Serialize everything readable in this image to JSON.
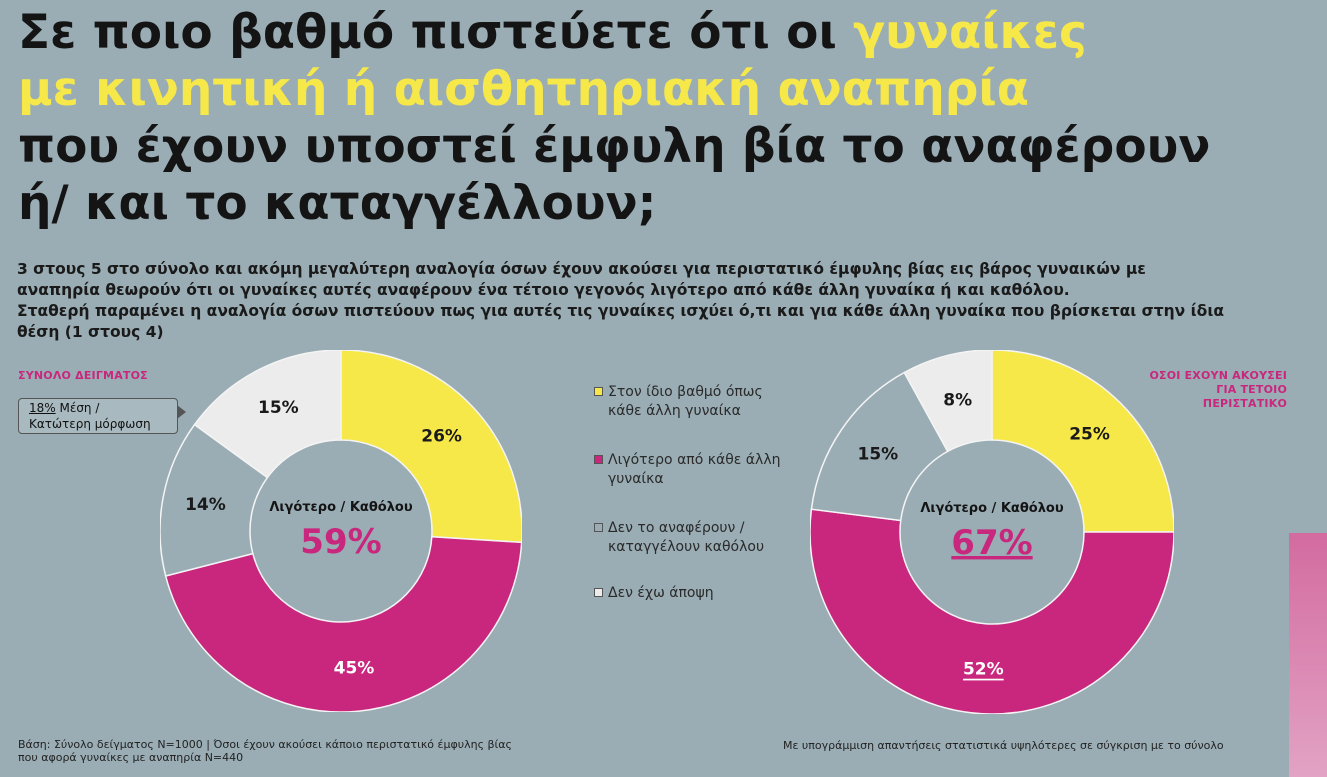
{
  "title": {
    "line1_pre": "Σε ποιο βαθμό πιστεύετε ότι οι ",
    "line1_highlight": "γυναίκες",
    "line2_highlight": "με κινητική ή αισθητηριακή αναπηρία",
    "line3": "που έχουν υποστεί έμφυλη βία το αναφέρουν",
    "line4": "ή/ και το καταγγέλλουν;"
  },
  "intro": [
    "3 στους 5 στο σύνολο και ακόμη μεγαλύτερη αναλογία όσων έχουν ακούσει για περιστατικό έμφυλης βίας εις βάρος γυναικών με",
    "αναπηρία θεωρούν ότι οι γυναίκες αυτές  αναφέρουν ένα τέτοιο γεγονός λιγότερο από κάθε άλλη γυναίκα ή και καθόλου.",
    "Σταθερή παραμένει η αναλογία όσων πιστεύουν πως για αυτές τις γυναίκες ισχύει ό,τι και για κάθε άλλη γυναίκα που βρίσκεται στην ίδια",
    "θέση (1 στους 4)"
  ],
  "left_chart_label": "ΣΥΝΟΛΟ ΔΕΙΓΜΑΤΟΣ",
  "right_chart_label_1": "ΟΣΟΙ ΕΧΟΥΝ ΑΚΟΥΣΕΙ",
  "right_chart_label_2": "ΓΙΑ ΤΕΤΟΙΟ ΠΕΡΙΣΤΑΤΙΚΟ",
  "callout": {
    "value": "18%",
    "line1_rest": " Μέση /",
    "line2": "Κατώτερη μόρφωση"
  },
  "legend": [
    {
      "line1": "Στον ίδιο βαθμό όπως",
      "line2": "κάθε άλλη γυναίκα",
      "color": "#f7e84a"
    },
    {
      "line1": "Λιγότερο από κάθε άλλη",
      "line2": "γυναίκα",
      "color": "#c9267e"
    },
    {
      "line1": "Δεν το αναφέρουν /",
      "line2": "καταγγέλουν καθόλου",
      "color": "#9aadb4"
    },
    {
      "line1": "Δεν έχω άποψη",
      "line2": "",
      "color": "#ececec"
    }
  ],
  "center_caption": "Λιγότερο / Καθόλου",
  "footer_left_1": "Βάση: Σύνολο δείγματος N=1000 | Όσοι έχουν ακούσει κάποιο περιστατικό έμφυλης βίας",
  "footer_left_2": "που αφορά γυναίκες με αναπηρία  N=440",
  "footer_right": "Με υπογράμμιση απαντήσεις στατιστικά υψηλότερες σε σύγκριση με το σύνολο",
  "chart_data": [
    {
      "type": "pie",
      "title": "ΣΥΝΟΛΟ ΔΕΙΓΜΑΤΟΣ",
      "categories": [
        "Στον ίδιο βαθμό όπως κάθε άλλη γυναίκα",
        "Λιγότερο από κάθε άλλη γυναίκα",
        "Δεν το αναφέρουν / καταγγέλουν καθόλου",
        "Δεν έχω άποψη"
      ],
      "values": [
        26,
        45,
        14,
        15
      ],
      "labels": [
        "26%",
        "45%",
        "14%",
        "15%"
      ],
      "colors": [
        "#f7e84a",
        "#c9267e",
        "#9aadb4",
        "#ececec"
      ],
      "center_value": "59%",
      "underlined": [
        false,
        false,
        false,
        false
      ]
    },
    {
      "type": "pie",
      "title": "ΟΣΟΙ ΕΧΟΥΝ ΑΚΟΥΣΕΙ ΓΙΑ ΤΕΤΟΙΟ ΠΕΡΙΣΤΑΤΙΚΟ",
      "categories": [
        "Στον ίδιο βαθμό όπως κάθε άλλη γυναίκα",
        "Λιγότερο από κάθε άλλη γυναίκα",
        "Δεν το αναφέρουν / καταγγέλουν καθόλου",
        "Δεν έχω άποψη"
      ],
      "values": [
        25,
        52,
        15,
        8
      ],
      "labels": [
        "25%",
        "52%",
        "15%",
        "8%"
      ],
      "colors": [
        "#f7e84a",
        "#c9267e",
        "#9aadb4",
        "#ececec"
      ],
      "center_value": "67%",
      "underlined": [
        false,
        true,
        false,
        false
      ]
    }
  ]
}
